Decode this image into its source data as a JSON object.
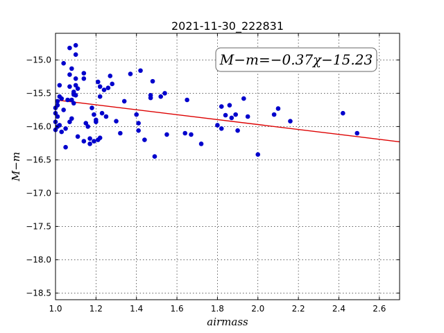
{
  "chart_data": {
    "type": "scatter",
    "title": "2021-11-30_222831",
    "xlabel": "airmass",
    "ylabel": "M−m",
    "xlim": [
      1.0,
      2.7
    ],
    "ylim": [
      -18.6,
      -14.6
    ],
    "y_inverted": true,
    "xticks": [
      1.0,
      1.2,
      1.4,
      1.6,
      1.8,
      2.0,
      2.2,
      2.4,
      2.6
    ],
    "xtick_labels": [
      "1.0",
      "1.2",
      "1.4",
      "1.6",
      "1.8",
      "2.0",
      "2.2",
      "2.4",
      "2.6"
    ],
    "yticks": [
      -15.0,
      -15.5,
      -16.0,
      -16.5,
      -17.0,
      -17.5,
      -18.0,
      -18.5
    ],
    "ytick_labels": [
      "−15.0",
      "−15.5",
      "−16.0",
      "−16.5",
      "−17.0",
      "−17.5",
      "−18.0",
      "−18.5"
    ],
    "grid": true,
    "point_color": "#0000cc",
    "fit_color": "#dd0000",
    "annotation": "M−m=−0.37χ−15.23",
    "fit": {
      "slope": -0.37,
      "intercept": -15.23
    },
    "points": [
      [
        1.0,
        -15.72
      ],
      [
        1.0,
        -15.8
      ],
      [
        1.0,
        -15.93
      ],
      [
        1.0,
        -16.05
      ],
      [
        1.01,
        -15.62
      ],
      [
        1.01,
        -15.68
      ],
      [
        1.01,
        -15.85
      ],
      [
        1.01,
        -16.0
      ],
      [
        1.02,
        -15.38
      ],
      [
        1.02,
        -15.55
      ],
      [
        1.02,
        -15.98
      ],
      [
        1.03,
        -15.58
      ],
      [
        1.03,
        -16.08
      ],
      [
        1.04,
        -15.05
      ],
      [
        1.04,
        -15.75
      ],
      [
        1.05,
        -16.31
      ],
      [
        1.05,
        -16.03
      ],
      [
        1.06,
        -15.6
      ],
      [
        1.07,
        -14.82
      ],
      [
        1.07,
        -15.22
      ],
      [
        1.07,
        -15.4
      ],
      [
        1.07,
        -15.93
      ],
      [
        1.08,
        -15.13
      ],
      [
        1.08,
        -15.88
      ],
      [
        1.08,
        -15.6
      ],
      [
        1.09,
        -15.65
      ],
      [
        1.09,
        -15.48
      ],
      [
        1.09,
        -15.52
      ],
      [
        1.1,
        -14.78
      ],
      [
        1.1,
        -14.92
      ],
      [
        1.1,
        -15.28
      ],
      [
        1.1,
        -15.53
      ],
      [
        1.1,
        -15.38
      ],
      [
        1.11,
        -15.43
      ],
      [
        1.11,
        -16.15
      ],
      [
        1.14,
        -16.22
      ],
      [
        1.14,
        -15.2
      ],
      [
        1.14,
        -15.28
      ],
      [
        1.15,
        -15.95
      ],
      [
        1.16,
        -16.0
      ],
      [
        1.17,
        -16.26
      ],
      [
        1.17,
        -16.18
      ],
      [
        1.18,
        -15.72
      ],
      [
        1.19,
        -15.82
      ],
      [
        1.19,
        -16.22
      ],
      [
        1.2,
        -15.93
      ],
      [
        1.2,
        -15.9
      ],
      [
        1.21,
        -16.2
      ],
      [
        1.21,
        -15.33
      ],
      [
        1.22,
        -15.4
      ],
      [
        1.22,
        -15.55
      ],
      [
        1.22,
        -16.17
      ],
      [
        1.23,
        -15.8
      ],
      [
        1.24,
        -15.45
      ],
      [
        1.25,
        -15.85
      ],
      [
        1.26,
        -15.42
      ],
      [
        1.27,
        -15.24
      ],
      [
        1.28,
        -15.36
      ],
      [
        1.3,
        -15.92
      ],
      [
        1.32,
        -16.1
      ],
      [
        1.34,
        -15.62
      ],
      [
        1.37,
        -15.21
      ],
      [
        1.4,
        -15.82
      ],
      [
        1.41,
        -16.06
      ],
      [
        1.41,
        -15.95
      ],
      [
        1.42,
        -15.16
      ],
      [
        1.44,
        -16.2
      ],
      [
        1.47,
        -15.53
      ],
      [
        1.47,
        -15.57
      ],
      [
        1.48,
        -15.32
      ],
      [
        1.49,
        -16.45
      ],
      [
        1.52,
        -15.55
      ],
      [
        1.54,
        -15.5
      ],
      [
        1.55,
        -16.12
      ],
      [
        1.64,
        -16.1
      ],
      [
        1.65,
        -15.6
      ],
      [
        1.67,
        -16.12
      ],
      [
        1.72,
        -16.26
      ],
      [
        1.8,
        -15.98
      ],
      [
        1.82,
        -15.7
      ],
      [
        1.82,
        -16.03
      ],
      [
        1.84,
        -15.83
      ],
      [
        1.86,
        -15.68
      ],
      [
        1.87,
        -15.87
      ],
      [
        1.89,
        -15.82
      ],
      [
        1.9,
        -16.06
      ],
      [
        1.93,
        -15.58
      ],
      [
        1.95,
        -15.85
      ],
      [
        2.0,
        -16.42
      ],
      [
        2.08,
        -15.82
      ],
      [
        2.1,
        -15.73
      ],
      [
        2.16,
        -15.92
      ],
      [
        2.42,
        -15.8
      ],
      [
        2.49,
        -16.1
      ]
    ]
  }
}
